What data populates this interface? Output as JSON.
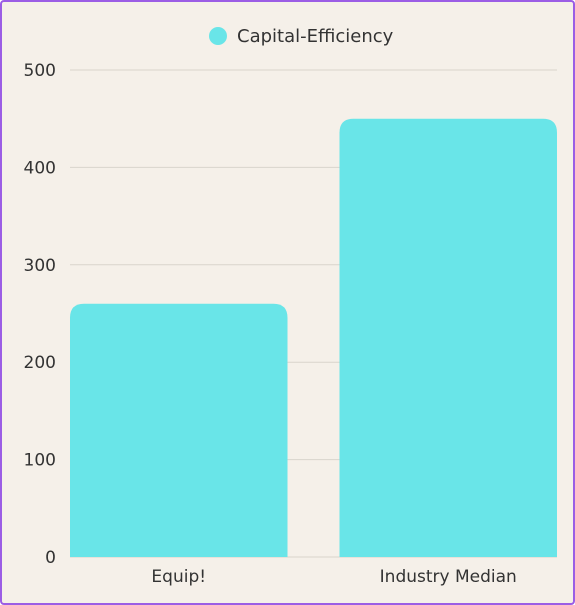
{
  "chart_data": {
    "type": "bar",
    "categories": [
      "Equip!",
      "Industry Median"
    ],
    "series": [
      {
        "name": "Capital-Efficiency",
        "values": [
          260,
          450
        ],
        "color": "#69e5e8"
      }
    ],
    "ylim": [
      0,
      500
    ],
    "yticks": [
      0,
      100,
      200,
      300,
      400,
      500
    ],
    "grid": true,
    "legend_position": "top-center",
    "title": "",
    "xlabel": "",
    "ylabel": ""
  },
  "colors": {
    "background": "#f5f0e9",
    "border": "#9b5de5",
    "grid": "#d9d4cc",
    "text": "#333333"
  }
}
